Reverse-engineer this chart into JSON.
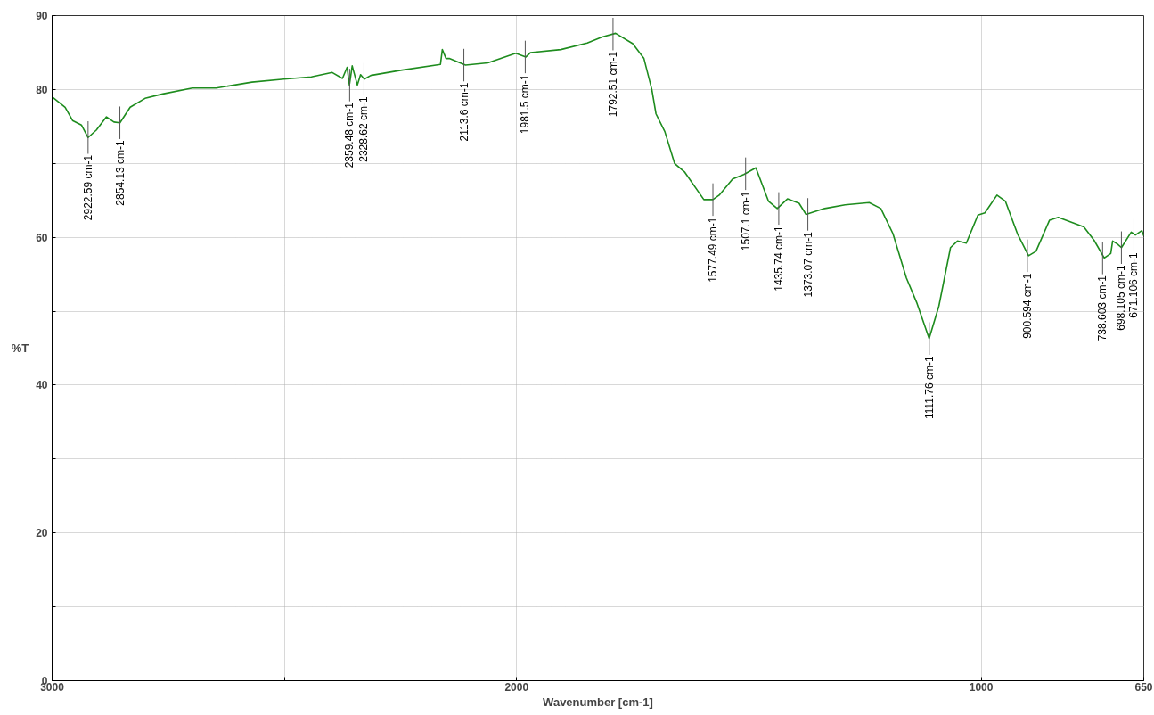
{
  "chart_data": {
    "type": "line",
    "xlabel": "Wavenumber [cm-1]",
    "ylabel": "%T",
    "xlim": [
      3000,
      650
    ],
    "ylim": [
      0,
      90
    ],
    "xticks": [
      3000,
      {
        "value": 2500,
        "label": null
      },
      2000,
      {
        "value": 1500,
        "label": null
      },
      1000,
      650
    ],
    "yticks": [
      0,
      {
        "value": 10,
        "label": null
      },
      20,
      {
        "value": 30,
        "label": null
      },
      40,
      {
        "value": 50,
        "label": null
      },
      60,
      {
        "value": 70,
        "label": null
      },
      80,
      90
    ],
    "grid": true,
    "line_style": "solid",
    "marker": "none",
    "series": [
      {
        "color": "#1e8c1e",
        "x": [
          3000,
          2972,
          2956,
          2937,
          2922.6,
          2905,
          2883,
          2867,
          2854,
          2832,
          2800,
          2762,
          2698,
          2647,
          2570,
          2501,
          2442,
          2397,
          2375,
          2365,
          2360,
          2354,
          2343,
          2336,
          2328,
          2314,
          2250,
          2164,
          2160,
          2152,
          2145,
          2110,
          2062,
          2002,
          1980,
          1970,
          1905,
          1848,
          1816,
          1787,
          1750,
          1726,
          1709,
          1700,
          1681,
          1660,
          1638,
          1597,
          1577.5,
          1564,
          1535,
          1511,
          1485,
          1458,
          1439,
          1417,
          1392,
          1377,
          1337,
          1293,
          1241,
          1216,
          1190,
          1161,
          1139,
          1112,
          1091,
          1066,
          1051,
          1032,
          1007,
          992,
          966,
          948,
          922,
          898,
          882,
          853,
          834,
          779,
          757,
          735,
          721,
          717,
          707,
          698,
          677,
          668,
          654,
          650
        ],
        "values": [
          79.0,
          77.6,
          75.8,
          75.2,
          73.5,
          74.5,
          76.3,
          75.6,
          75.5,
          77.6,
          78.8,
          79.4,
          80.2,
          80.2,
          81.0,
          81.4,
          81.7,
          82.3,
          81.5,
          83.0,
          80.6,
          83.2,
          80.6,
          82.0,
          81.4,
          81.9,
          82.6,
          83.4,
          85.4,
          84.2,
          84.2,
          83.3,
          83.6,
          84.9,
          84.4,
          85.0,
          85.4,
          86.3,
          87.1,
          87.6,
          86.2,
          84.2,
          80.0,
          76.7,
          74.3,
          70.0,
          68.8,
          65.1,
          65.1,
          65.7,
          67.9,
          68.5,
          69.4,
          64.9,
          63.9,
          65.2,
          64.6,
          63.1,
          63.9,
          64.4,
          64.7,
          63.9,
          60.5,
          54.5,
          51.2,
          46.3,
          50.7,
          58.6,
          59.5,
          59.2,
          63.0,
          63.3,
          65.7,
          64.9,
          60.5,
          57.5,
          58.1,
          62.3,
          62.7,
          61.4,
          59.6,
          57.2,
          57.8,
          59.5,
          59.1,
          58.6,
          60.7,
          60.3,
          60.9,
          60.2
        ]
      }
    ],
    "annotations": [
      {
        "text": "2922.59 cm-1",
        "x": 2922.59,
        "y": 73.5
      },
      {
        "text": "2854.13 cm-1",
        "x": 2854.13,
        "y": 75.5
      },
      {
        "text": "2359.48 cm-1",
        "x": 2359.48,
        "y": 80.6
      },
      {
        "text": "2328.62 cm-1",
        "x": 2328.62,
        "y": 81.4
      },
      {
        "text": "2113.6 cm-1",
        "x": 2113.6,
        "y": 83.3
      },
      {
        "text": "1981.5 cm-1",
        "x": 1981.5,
        "y": 84.4
      },
      {
        "text": "1792.51 cm-1",
        "x": 1792.51,
        "y": 87.5
      },
      {
        "text": "1577.49 cm-1",
        "x": 1577.49,
        "y": 65.1
      },
      {
        "text": "1507.1 cm-1",
        "x": 1507.1,
        "y": 68.6
      },
      {
        "text": "1435.74 cm-1",
        "x": 1435.74,
        "y": 63.9
      },
      {
        "text": "1373.07 cm-1",
        "x": 1373.07,
        "y": 63.1
      },
      {
        "text": "1111.76 cm-1",
        "x": 1111.76,
        "y": 46.3
      },
      {
        "text": "900.594 cm-1",
        "x": 900.594,
        "y": 57.5
      },
      {
        "text": "738.603 cm-1",
        "x": 738.603,
        "y": 57.2
      },
      {
        "text": "698.105 cm-1",
        "x": 698.105,
        "y": 58.6
      },
      {
        "text": "671.106 cm-1",
        "x": 671.106,
        "y": 60.3
      }
    ]
  }
}
